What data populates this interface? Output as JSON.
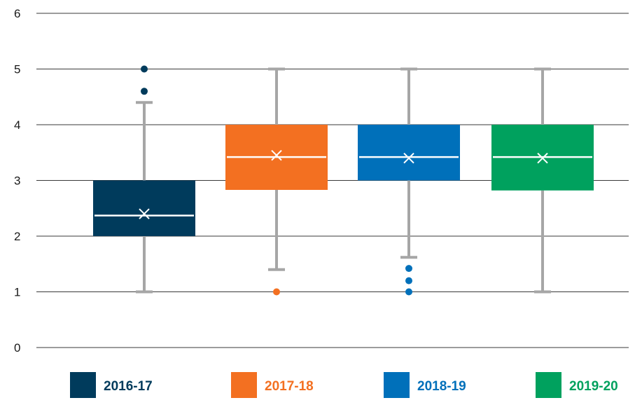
{
  "chart_data": {
    "type": "boxplot",
    "title": "",
    "xlabel": "",
    "ylabel": "",
    "ylim": [
      0,
      6
    ],
    "y_ticks": [
      "0",
      "1",
      "2",
      "3",
      "4",
      "5",
      "6"
    ],
    "grid": "horizontal",
    "legend_position": "bottom",
    "series": [
      {
        "name": "2016-17",
        "color": "#003B5C",
        "lower_whisker": 1,
        "q1": 2,
        "median": 2.37,
        "q3": 3,
        "upper_whisker": 4.4,
        "mean": 2.4,
        "outliers": [
          4.6,
          5
        ]
      },
      {
        "name": "2017-18",
        "color": "#F37021",
        "lower_whisker": 1.4,
        "q1": 2.83,
        "median": 3.42,
        "q3": 4,
        "upper_whisker": 5,
        "mean": 3.45,
        "outliers": [
          1
        ]
      },
      {
        "name": "2018-19",
        "color": "#0070BA",
        "lower_whisker": 1.62,
        "q1": 3,
        "median": 3.42,
        "q3": 4,
        "upper_whisker": 5,
        "mean": 3.4,
        "outliers": [
          1,
          1.2,
          1.42
        ]
      },
      {
        "name": "2019-20",
        "color": "#00A15E",
        "lower_whisker": 1,
        "q1": 2.82,
        "median": 3.42,
        "q3": 4,
        "upper_whisker": 5,
        "mean": 3.4,
        "outliers": []
      }
    ]
  }
}
